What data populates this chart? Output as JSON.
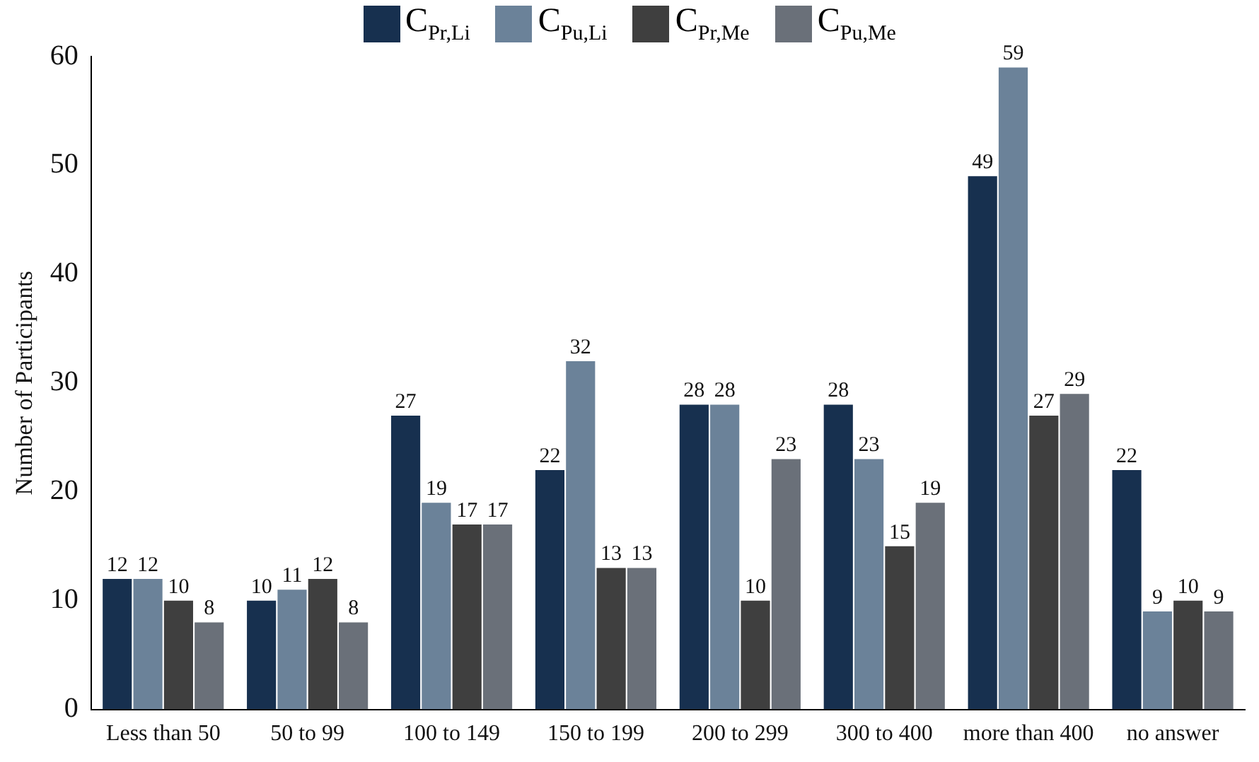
{
  "chart_data": {
    "type": "bar",
    "ylabel": "Number of Participants",
    "categories": [
      "Less than 50",
      "50 to 99",
      "100 to 149",
      "150 to 199",
      "200 to 299",
      "300 to 400",
      "more than 400",
      "no answer"
    ],
    "series": [
      {
        "name": "C$_{Pr,Li}$",
        "color": "#17304f",
        "values": [
          12,
          10,
          27,
          22,
          28,
          28,
          49,
          22
        ]
      },
      {
        "name": "C$_{Pu,Li}$",
        "color": "#6b8299",
        "values": [
          12,
          11,
          19,
          32,
          28,
          23,
          59,
          9
        ]
      },
      {
        "name": "C$_{Pr,Me}$",
        "color": "#3f3f3f",
        "values": [
          10,
          12,
          17,
          13,
          10,
          15,
          27,
          10
        ]
      },
      {
        "name": "C$_{Pu,Me}$",
        "color": "#6a7079",
        "values": [
          8,
          8,
          17,
          13,
          23,
          19,
          29,
          9
        ]
      }
    ],
    "ylim": [
      0,
      60
    ],
    "yticks": [
      0,
      10,
      20,
      30,
      40,
      50,
      60
    ],
    "grid": false,
    "legend": "top",
    "data_labels": true
  }
}
